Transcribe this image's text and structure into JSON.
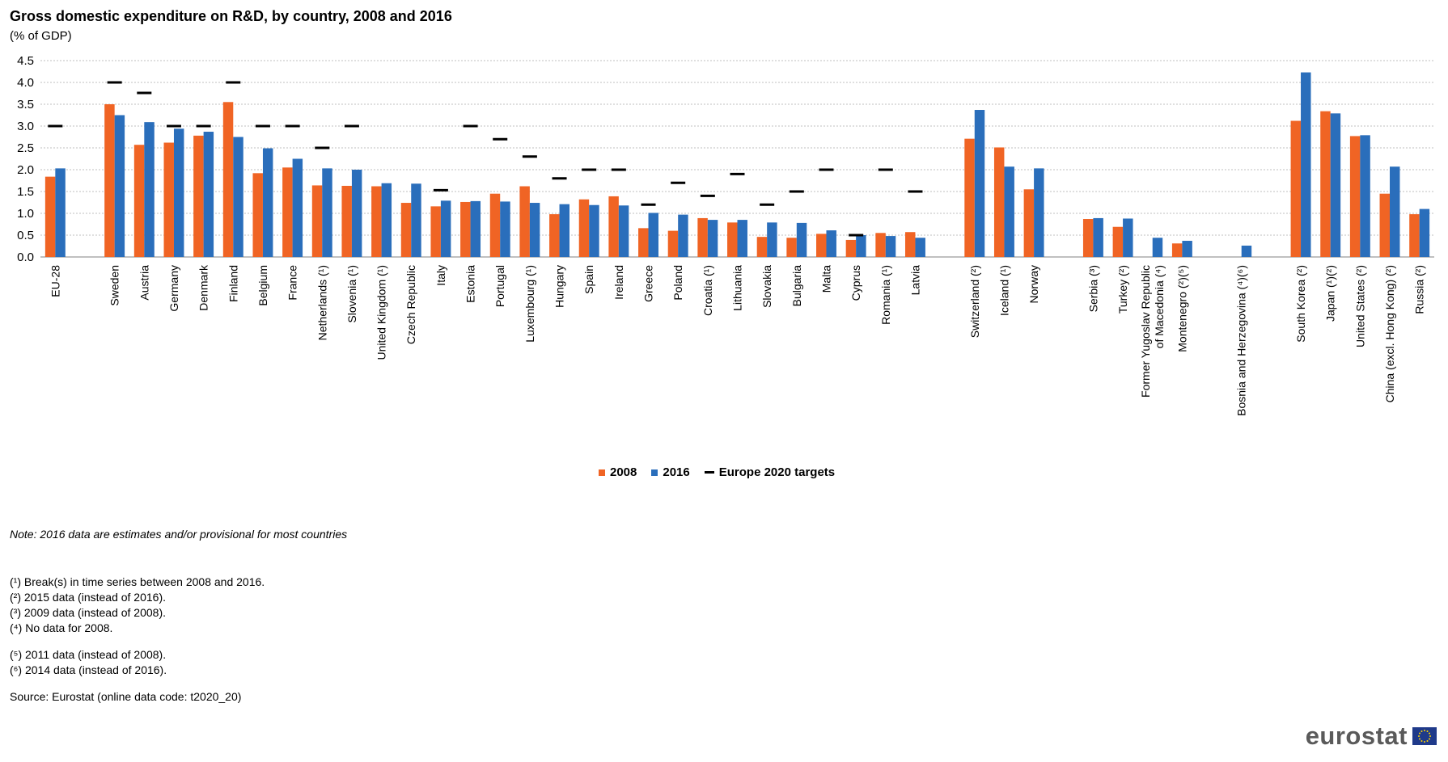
{
  "title": "Gross domestic expenditure on R&D, by country, 2008 and 2016",
  "subtitle": "(% of GDP)",
  "legend": {
    "s2008": "2008",
    "s2016": "2016",
    "target": "Europe 2020 targets"
  },
  "colors": {
    "s2008": "#f06424",
    "s2016": "#2a6ebb",
    "target": "#000000",
    "grid": "#bfbfbf"
  },
  "chart_data": {
    "type": "bar",
    "ylim": [
      0,
      4.5
    ],
    "yticks": [
      "0.0",
      "0.5",
      "1.0",
      "1.5",
      "2.0",
      "2.5",
      "3.0",
      "3.5",
      "4.0",
      "4.5"
    ],
    "grid": true,
    "legend_position": "bottom",
    "categories": [
      "EU-28",
      "",
      "Sweden",
      "Austria",
      "Germany",
      "Denmark",
      "Finland",
      "Belgium",
      "France",
      "Netherlands (¹)",
      "Slovenia (¹)",
      "United Kingdom (¹)",
      "Czech Republic",
      "Italy",
      "Estonia",
      "Portugal",
      "Luxembourg (¹)",
      "Hungary",
      "Spain",
      "Ireland",
      "Greece",
      "Poland",
      "Croatia (¹)",
      "Lithuania",
      "Slovakia",
      "Bulgaria",
      "Malta",
      "Cyprus",
      "Romania (¹)",
      "Latvia",
      "",
      "Switzerland (²)",
      "Iceland (¹)",
      "Norway",
      "",
      "Serbia (³)",
      "Turkey (²)",
      "Former Yugoslav Republic of Macedonia (⁴)",
      "Montenegro (²)(⁵)",
      "",
      "Bosnia and Herzegovina (⁴)(⁶)",
      "",
      "South Korea (²)",
      "Japan (¹)(²)",
      "United States (²)",
      "China (excl. Hong Kong) (²)",
      "Russia (²)"
    ],
    "series": [
      {
        "name": "2008",
        "values": [
          1.84,
          null,
          3.5,
          2.57,
          2.62,
          2.78,
          3.55,
          1.92,
          2.05,
          1.64,
          1.63,
          1.62,
          1.24,
          1.16,
          1.26,
          1.45,
          1.62,
          0.98,
          1.32,
          1.39,
          0.66,
          0.6,
          0.89,
          0.79,
          0.46,
          0.44,
          0.53,
          0.39,
          0.55,
          0.57,
          null,
          2.71,
          2.51,
          1.55,
          null,
          0.87,
          0.69,
          null,
          0.31,
          null,
          null,
          null,
          3.12,
          3.34,
          2.77,
          1.45,
          0.98
        ]
      },
      {
        "name": "2016",
        "values": [
          2.03,
          null,
          3.25,
          3.09,
          2.94,
          2.87,
          2.75,
          2.49,
          2.25,
          2.03,
          2.0,
          1.69,
          1.68,
          1.29,
          1.28,
          1.27,
          1.24,
          1.21,
          1.19,
          1.18,
          1.01,
          0.97,
          0.85,
          0.85,
          0.79,
          0.78,
          0.61,
          0.5,
          0.48,
          0.44,
          null,
          3.37,
          2.07,
          2.03,
          null,
          0.89,
          0.88,
          0.44,
          0.37,
          null,
          0.26,
          null,
          4.23,
          3.29,
          2.79,
          2.07,
          1.1
        ]
      },
      {
        "name": "Europe 2020 targets",
        "values": [
          3.0,
          null,
          4.0,
          3.76,
          3.0,
          3.0,
          4.0,
          3.0,
          3.0,
          2.5,
          3.0,
          null,
          null,
          1.53,
          3.0,
          2.7,
          2.3,
          1.8,
          2.0,
          2.0,
          1.2,
          1.7,
          1.4,
          1.9,
          1.2,
          1.5,
          2.0,
          0.5,
          2.0,
          1.5,
          null,
          null,
          null,
          null,
          null,
          null,
          null,
          null,
          null,
          null,
          null,
          null,
          null,
          null,
          null,
          null,
          null
        ]
      }
    ]
  },
  "notes": {
    "estimates": "Note: 2016 data are estimates and/or provisional for most countries",
    "n1": "(¹) Break(s) in time series between 2008 and 2016.",
    "n2": "(²) 2015 data (instead of 2016).",
    "n3": "(³) 2009 data (instead of 2008).",
    "n4": "(⁴) No data for 2008.",
    "n5": "(⁵) 2011 data (instead of 2008).",
    "n6": "(⁶) 2014 data (instead of 2016).",
    "source": "Source: Eurostat (online data code: t2020_20)"
  },
  "logo": {
    "text": "eurostat",
    "icon": "eu-flag-icon"
  }
}
